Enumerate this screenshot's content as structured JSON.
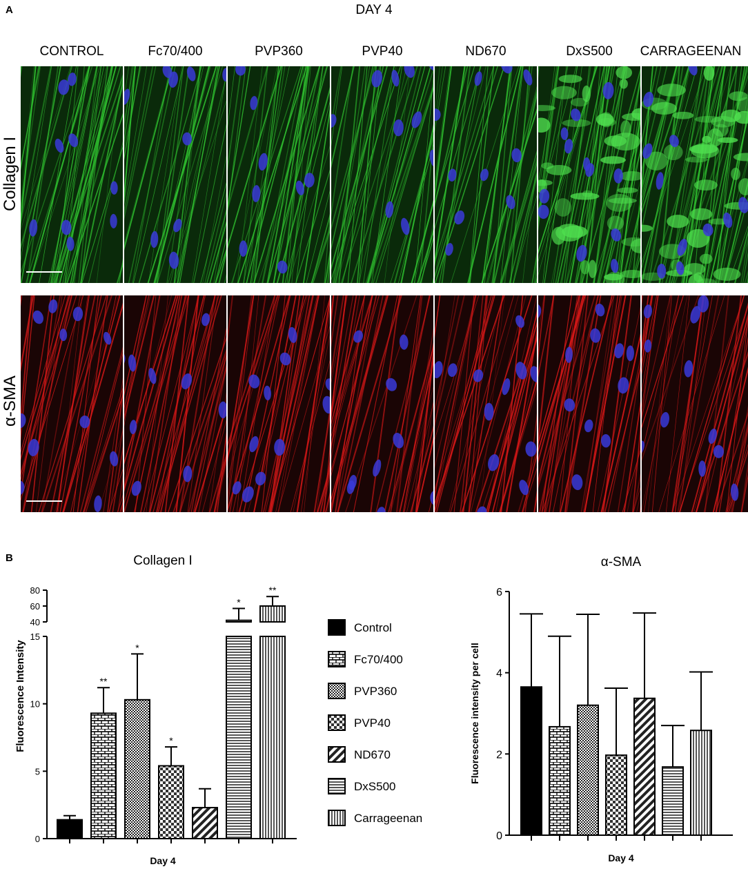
{
  "panel_a": {
    "letter": "A",
    "title": "DAY 4",
    "columns": [
      "CONTROL",
      "Fc70/400",
      "PVP360",
      "PVP40",
      "ND670",
      "DxS500",
      "CARRAGEENAN"
    ],
    "rows": [
      "Collagen I",
      "α-SMA"
    ],
    "colors": {
      "collagen": "#2fbf2f",
      "actin": "#d81818",
      "nuclei": "#3a3ad8"
    }
  },
  "panel_b": {
    "letter": "B"
  },
  "chart_data": [
    {
      "type": "bar",
      "title": "Collagen I",
      "xlabel": "Day 4",
      "ylabel": "Fluorescence Intensity",
      "categories": [
        "Control",
        "Fc70/400",
        "PVP360",
        "PVP40",
        "ND670",
        "DxS500",
        "Carrageenan"
      ],
      "values": [
        1.4,
        9.3,
        10.3,
        5.4,
        2.3,
        42,
        60
      ],
      "errors": [
        0.3,
        1.9,
        3.4,
        1.4,
        1.4,
        15,
        12
      ],
      "significance": [
        "",
        "**",
        "*",
        "*",
        "",
        "*",
        "**"
      ],
      "y_axis_break": {
        "lower_range": [
          0,
          15
        ],
        "upper_range": [
          40,
          80
        ]
      },
      "lower_ticks": [
        "0",
        "5",
        "10",
        "15"
      ],
      "upper_ticks": [
        "40",
        "60",
        "80"
      ],
      "grid": false
    },
    {
      "type": "bar",
      "title": "α-SMA",
      "xlabel": "Day 4",
      "ylabel": "Fluorescence intensity per cell",
      "categories": [
        "Control",
        "Fc70/400",
        "PVP360",
        "PVP40",
        "ND670",
        "DxS500",
        "Carrageenan"
      ],
      "values": [
        3.65,
        2.67,
        3.2,
        1.97,
        3.37,
        1.68,
        2.58
      ],
      "errors": [
        1.8,
        2.23,
        2.24,
        1.65,
        2.1,
        1.02,
        1.44
      ],
      "ylim": [
        0,
        6
      ],
      "ticks": [
        "0",
        "2",
        "4",
        "6"
      ],
      "grid": false
    }
  ],
  "legend": {
    "entries": [
      {
        "label": "Control",
        "pattern": "solid"
      },
      {
        "label": "Fc70/400",
        "pattern": "brick"
      },
      {
        "label": "PVP360",
        "pattern": "fine-check"
      },
      {
        "label": "PVP40",
        "pattern": "check"
      },
      {
        "label": "ND670",
        "pattern": "diagonal"
      },
      {
        "label": "DxS500",
        "pattern": "horizontal"
      },
      {
        "label": "Carrageenan",
        "pattern": "vertical"
      }
    ]
  }
}
